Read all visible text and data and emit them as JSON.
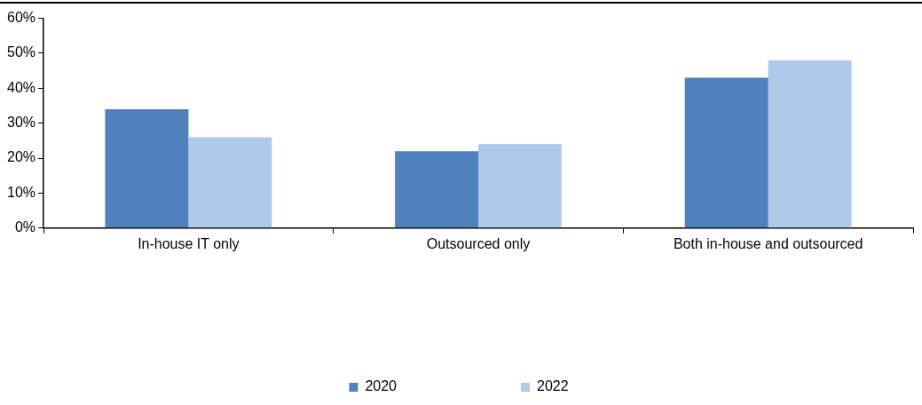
{
  "chart_data": {
    "type": "bar",
    "categories": [
      "In-house IT only",
      "Outsourced only",
      "Both in-house and outsourced"
    ],
    "series": [
      {
        "name": "2020",
        "color": "#4f81bd",
        "values": [
          34,
          22,
          43
        ]
      },
      {
        "name": "2022",
        "color": "#aec9ea",
        "values": [
          26,
          24,
          48
        ]
      }
    ],
    "ylim": [
      0,
      60
    ],
    "yticks": [
      {
        "value": 0,
        "label": "0%"
      },
      {
        "value": 10,
        "label": "10%"
      },
      {
        "value": 20,
        "label": "20%"
      },
      {
        "value": 30,
        "label": "30%"
      },
      {
        "value": 40,
        "label": "40%"
      },
      {
        "value": 50,
        "label": "50%"
      },
      {
        "value": 60,
        "label": "60%"
      }
    ],
    "grid": false,
    "legend": "bottom"
  }
}
